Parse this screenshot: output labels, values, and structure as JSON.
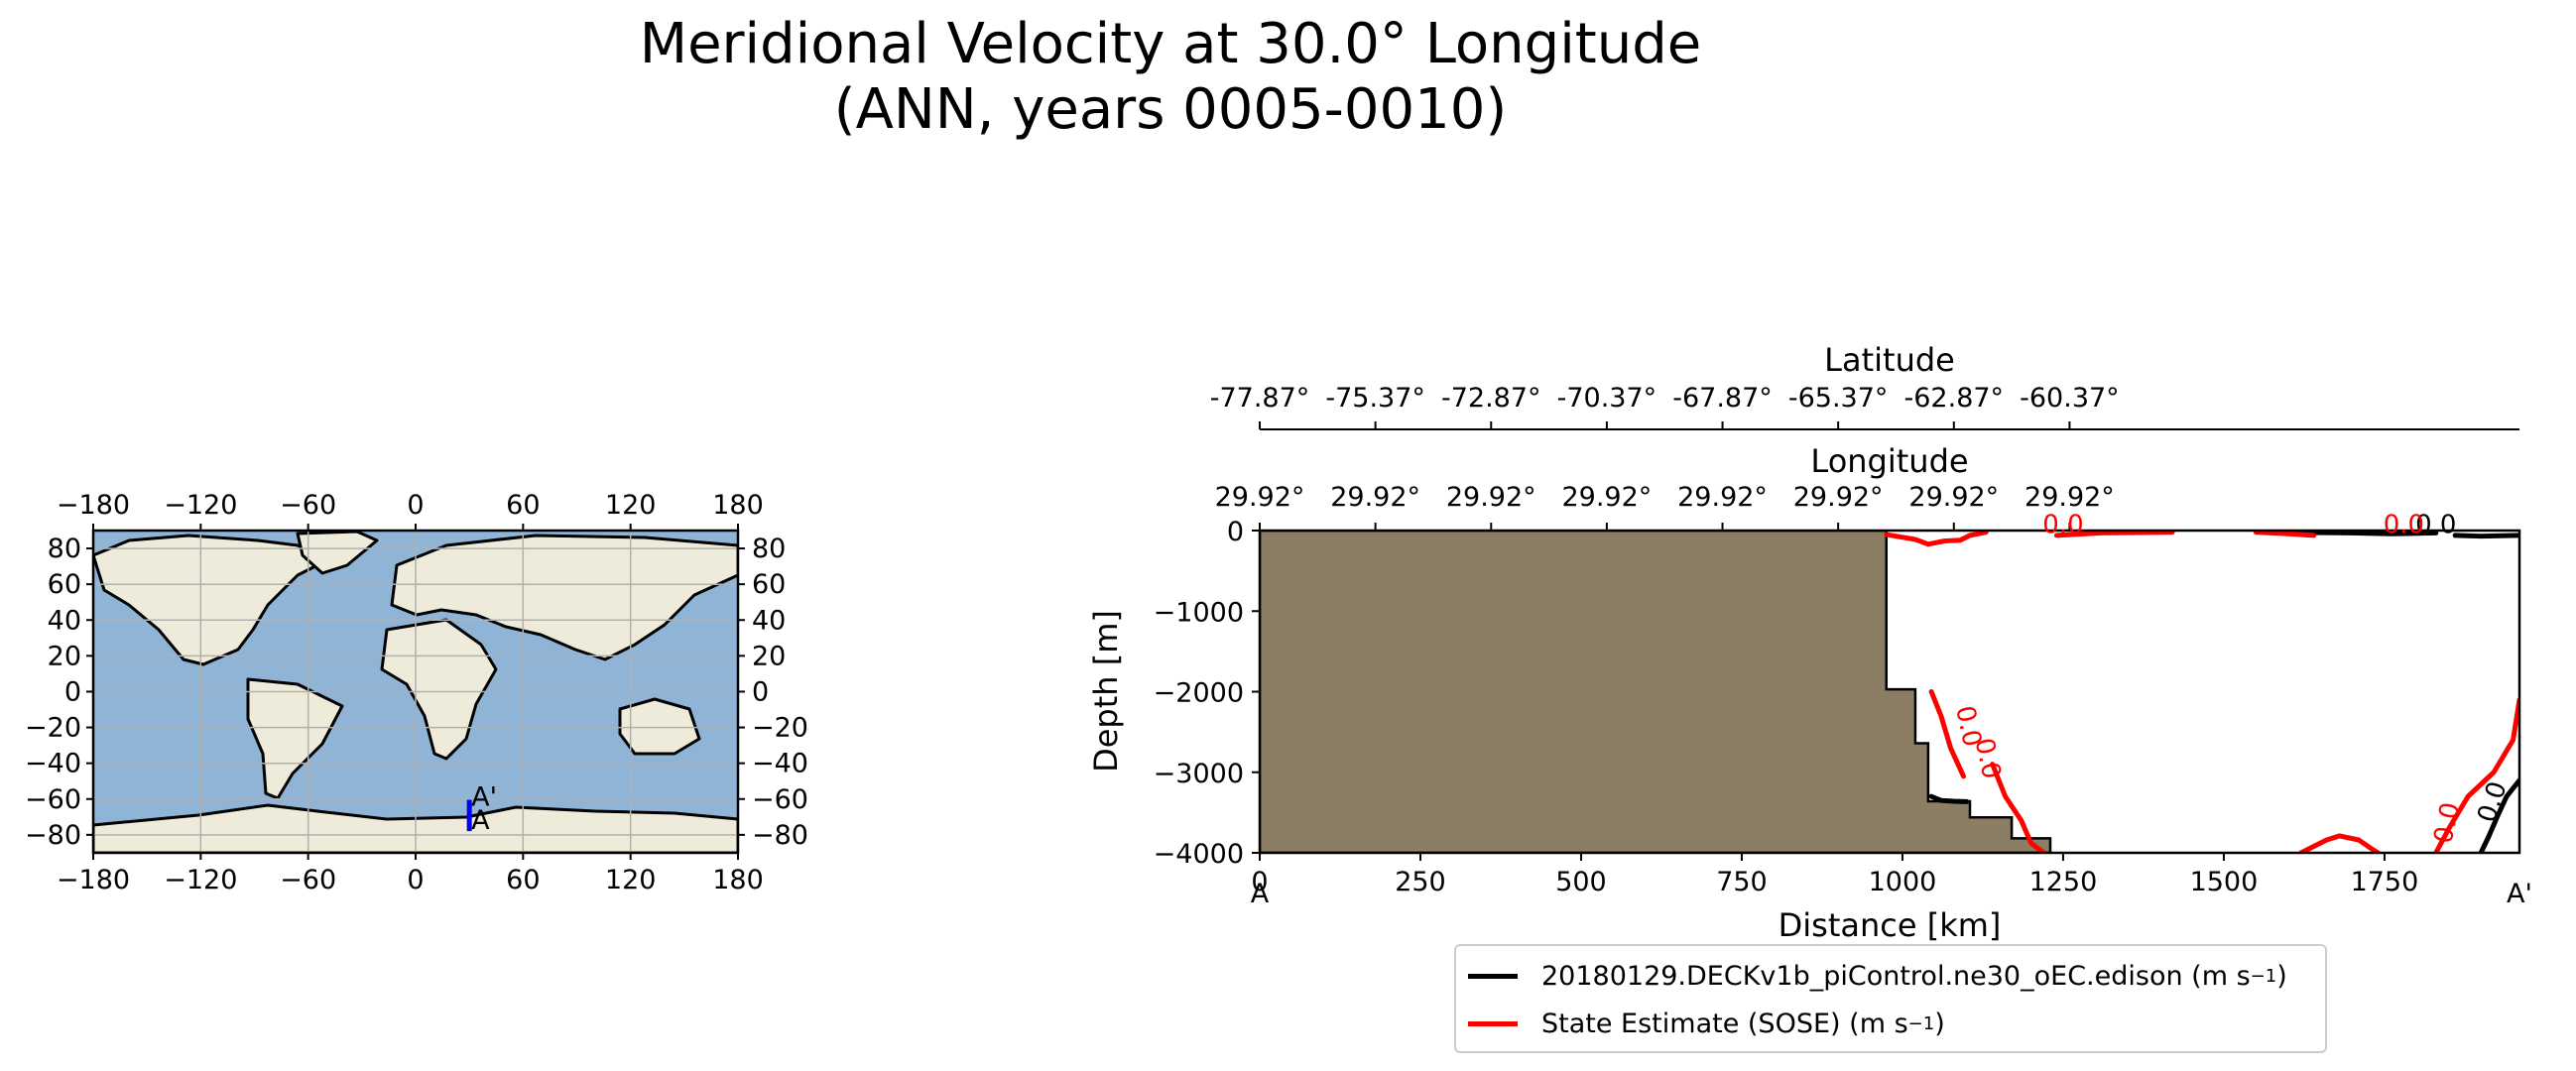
{
  "title_line1": "Meridional Velocity at 30.0° Longitude",
  "title_line2": "(ANN, years 0005-0010)",
  "map": {
    "x_ticks": [
      "−180",
      "−120",
      "−60",
      "0",
      "60",
      "120",
      "180"
    ],
    "y_ticks_left": [
      "80",
      "60",
      "40",
      "20",
      "0",
      "−20",
      "−40",
      "−60",
      "−80"
    ],
    "y_ticks_right": [
      "80",
      "60",
      "40",
      "20",
      "0",
      "−20",
      "−40",
      "−60",
      "−80"
    ],
    "transect_start_label": "A",
    "transect_end_label": "A'",
    "transect_lon": 30.0,
    "transect_lat_start": -77.87,
    "transect_lat_end": -60.37,
    "colors": {
      "ocean": "#8fb4d6",
      "land": "#efebdb",
      "transect": "#0000ff",
      "grid": "#b0b0b0"
    }
  },
  "chart_data": {
    "type": "line",
    "title": "Meridional Velocity at 30.0° Longitude (ANN, years 0005-0010)",
    "xlabel": "Distance [km]",
    "ylabel": "Depth [m]",
    "xlim": [
      0,
      1960
    ],
    "ylim": [
      -4000,
      0
    ],
    "x_ticks": [
      "0",
      "250",
      "500",
      "750",
      "1000",
      "1250",
      "1500",
      "1750"
    ],
    "x_tick_values": [
      0,
      250,
      500,
      750,
      1000,
      1250,
      1500,
      1750
    ],
    "y_ticks": [
      "0",
      "−1000",
      "−2000",
      "−3000",
      "−4000"
    ],
    "y_tick_values": [
      0,
      -1000,
      -2000,
      -3000,
      -4000
    ],
    "top_axis_latitude": {
      "label": "Latitude",
      "ticks": [
        "-77.87°",
        "-75.37°",
        "-72.87°",
        "-70.37°",
        "-67.87°",
        "-65.37°",
        "-62.87°",
        "-60.37°"
      ]
    },
    "top_axis_longitude": {
      "label": "Longitude",
      "ticks": [
        "29.92°",
        "29.92°",
        "29.92°",
        "29.92°",
        "29.92°",
        "29.92°",
        "29.92°",
        "29.92°"
      ]
    },
    "section_start_label": "A",
    "section_end_label": "A'",
    "bathymetry": [
      [
        0,
        0
      ],
      [
        975,
        0
      ],
      [
        975,
        -1970
      ],
      [
        1020,
        -1970
      ],
      [
        1020,
        -2640
      ],
      [
        1040,
        -2640
      ],
      [
        1040,
        -3360
      ],
      [
        1105,
        -3360
      ],
      [
        1105,
        -3560
      ],
      [
        1170,
        -3560
      ],
      [
        1170,
        -3820
      ],
      [
        1230,
        -3820
      ],
      [
        1230,
        -4000
      ],
      [
        0,
        -4000
      ]
    ],
    "series": [
      {
        "name": "20180129.DECKv1b_piControl.ne30_oEC.edison",
        "units_label": "(m s",
        "units_exp": "−1",
        "units_close": ")",
        "color": "#000000",
        "contour_labels": [
          "0.0",
          "0.0",
          "0.0"
        ],
        "contours": [
          [
            [
              1560,
              -20
            ],
            [
              1700,
              -30
            ],
            [
              1760,
              -40
            ],
            [
              1830,
              -30
            ]
          ],
          [
            [
              1860,
              -60
            ],
            [
              1900,
              -70
            ],
            [
              1960,
              -60
            ]
          ],
          [
            [
              1900,
              -4000
            ],
            [
              1912,
              -3800
            ],
            [
              1925,
              -3560
            ],
            [
              1940,
              -3300
            ],
            [
              1960,
              -3100
            ]
          ],
          [
            [
              1045,
              -3300
            ],
            [
              1060,
              -3350
            ],
            [
              1080,
              -3360
            ],
            [
              1100,
              -3365
            ]
          ]
        ]
      },
      {
        "name": "State Estimate (SOSE)",
        "units_label": "(m s",
        "units_exp": "−1",
        "units_close": ")",
        "color": "#ff0000",
        "contour_labels": [
          "0.0",
          "0.0",
          "0.0",
          "0.0"
        ],
        "contours": [
          [
            [
              975,
              -50
            ],
            [
              1020,
              -110
            ],
            [
              1040,
              -170
            ],
            [
              1065,
              -130
            ],
            [
              1090,
              -120
            ],
            [
              1105,
              -60
            ],
            [
              1130,
              -20
            ]
          ],
          [
            [
              1140,
              -2900
            ],
            [
              1160,
              -3300
            ],
            [
              1185,
              -3600
            ],
            [
              1200,
              -3880
            ],
            [
              1220,
              -4000
            ]
          ],
          [
            [
              1045,
              -2000
            ],
            [
              1060,
              -2300
            ],
            [
              1075,
              -2700
            ],
            [
              1095,
              -3050
            ]
          ],
          [
            [
              1240,
              -60
            ],
            [
              1310,
              -30
            ],
            [
              1420,
              -20
            ]
          ],
          [
            [
              1550,
              -20
            ],
            [
              1600,
              -40
            ],
            [
              1640,
              -60
            ]
          ],
          [
            [
              1620,
              -4000
            ],
            [
              1640,
              -3920
            ],
            [
              1660,
              -3840
            ],
            [
              1680,
              -3790
            ],
            [
              1710,
              -3840
            ],
            [
              1730,
              -3950
            ],
            [
              1740,
              -4000
            ]
          ],
          [
            [
              1830,
              -4000
            ],
            [
              1850,
              -3700
            ],
            [
              1880,
              -3300
            ],
            [
              1920,
              -3000
            ],
            [
              1950,
              -2600
            ],
            [
              1960,
              -2100
            ]
          ]
        ]
      }
    ]
  }
}
